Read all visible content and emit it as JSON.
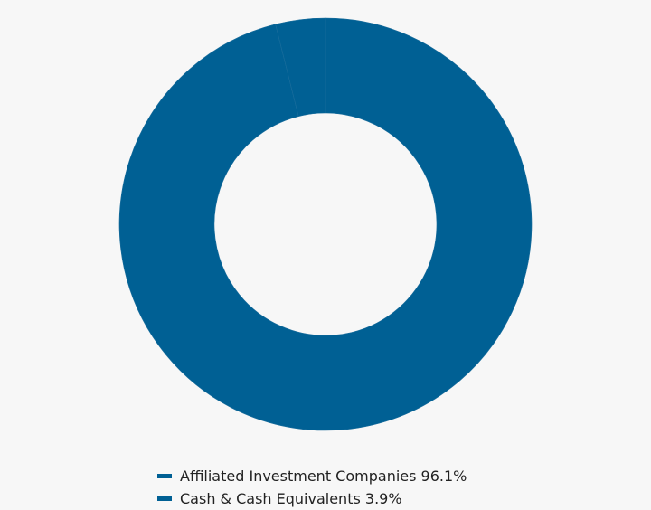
{
  "chart_data": {
    "type": "donut",
    "categories": [
      "Affiliated Investment Companies",
      "Cash & Cash Equivalents"
    ],
    "values": [
      96.1,
      3.9
    ],
    "value_labels": [
      "96.1%",
      "3.9%"
    ],
    "colors": [
      "#006094",
      "#006094"
    ]
  }
}
